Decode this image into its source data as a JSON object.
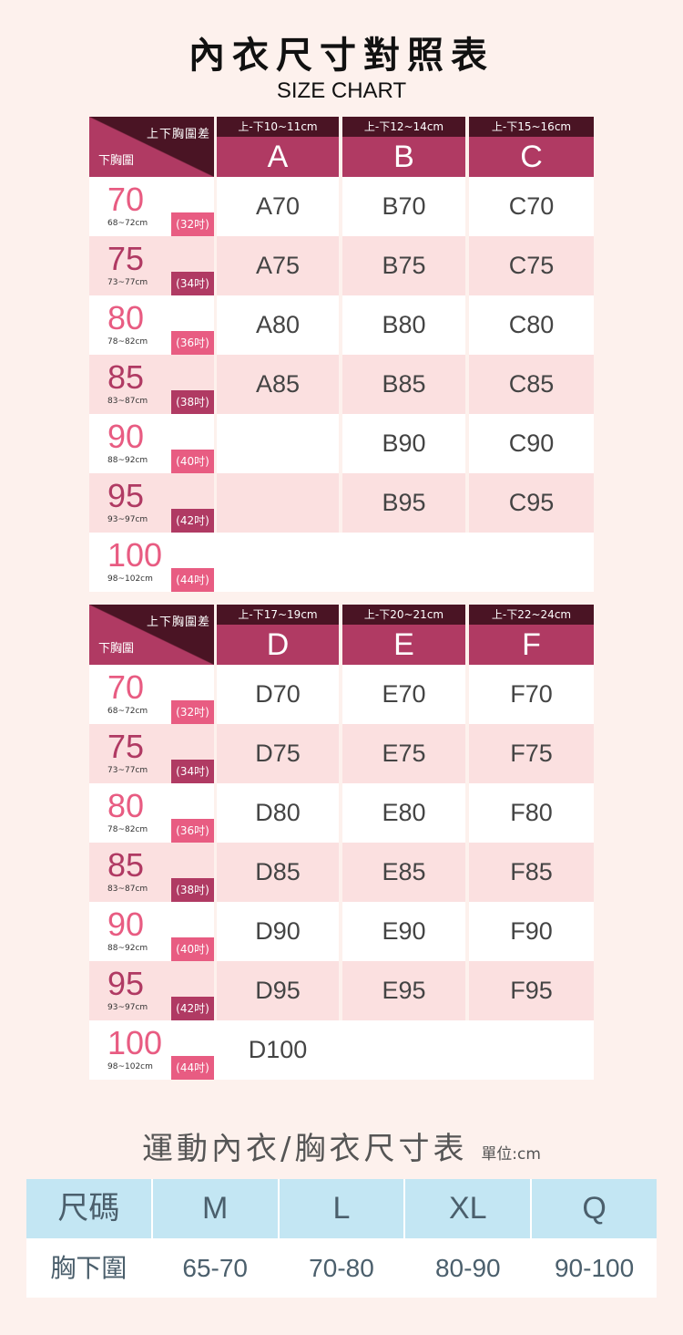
{
  "title": "內衣尺寸對照表",
  "subtitle": "SIZE CHART",
  "corner": {
    "top": "上下胸圍差",
    "bottom": "下胸圍"
  },
  "rows": [
    {
      "num": "70",
      "cm": "68~72cm",
      "inch": "(32吋)"
    },
    {
      "num": "75",
      "cm": "73~77cm",
      "inch": "(34吋)"
    },
    {
      "num": "80",
      "cm": "78~82cm",
      "inch": "(36吋)"
    },
    {
      "num": "85",
      "cm": "83~87cm",
      "inch": "(38吋)"
    },
    {
      "num": "90",
      "cm": "88~92cm",
      "inch": "(40吋)"
    },
    {
      "num": "95",
      "cm": "93~97cm",
      "inch": "(42吋)"
    },
    {
      "num": "100",
      "cm": "98~102cm",
      "inch": "(44吋)"
    }
  ],
  "tables": [
    {
      "cups": [
        {
          "range": "上-下10~11cm",
          "letter": "A",
          "values": [
            "A70",
            "A75",
            "A80",
            "A85",
            "",
            "",
            ""
          ]
        },
        {
          "range": "上-下12~14cm",
          "letter": "B",
          "values": [
            "B70",
            "B75",
            "B80",
            "B85",
            "B90",
            "B95",
            ""
          ]
        },
        {
          "range": "上-下15~16cm",
          "letter": "C",
          "values": [
            "C70",
            "C75",
            "C80",
            "C85",
            "C90",
            "C95",
            ""
          ]
        }
      ]
    },
    {
      "cups": [
        {
          "range": "上-下17~19cm",
          "letter": "D",
          "values": [
            "D70",
            "D75",
            "D80",
            "D85",
            "D90",
            "D95",
            "D100"
          ]
        },
        {
          "range": "上-下20~21cm",
          "letter": "E",
          "values": [
            "E70",
            "E75",
            "E80",
            "E85",
            "E90",
            "E95",
            ""
          ]
        },
        {
          "range": "上-下22~24cm",
          "letter": "F",
          "values": [
            "F70",
            "F75",
            "F80",
            "F85",
            "F90",
            "F95",
            ""
          ]
        }
      ]
    }
  ],
  "sport": {
    "title": "運動內衣/胸衣尺寸表",
    "unit": "單位:cm",
    "header": [
      "尺碼",
      "M",
      "L",
      "XL",
      "Q"
    ],
    "body": [
      "胸下圍",
      "65-70",
      "70-80",
      "80-90",
      "90-100"
    ]
  },
  "colors": {
    "background": "#fdf1ed",
    "header": "#b03a63",
    "header_dark": "#4a1424",
    "pink": "#e85c82",
    "row_alt": "#fbe0e0",
    "sport_header": "#c3e6f3"
  }
}
